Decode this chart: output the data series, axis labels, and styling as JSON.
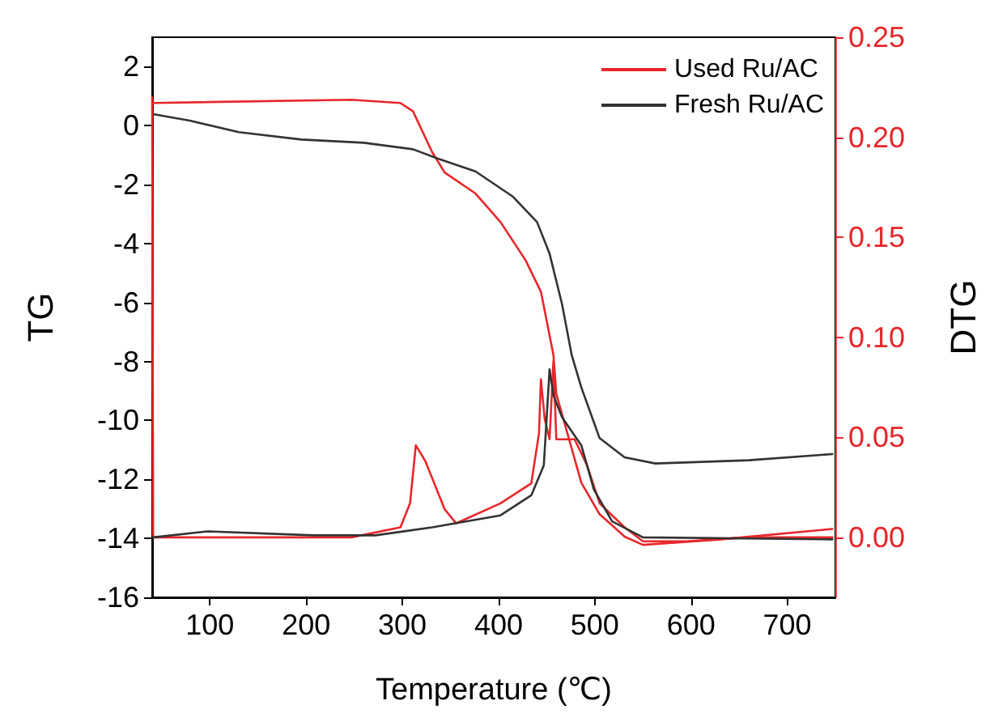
{
  "chart_data": {
    "type": "line",
    "xlabel": "Temperature (℃)",
    "ylabel": "TG",
    "y2label": "DTG",
    "xlim": [
      40,
      750
    ],
    "xticks": [
      100,
      200,
      300,
      400,
      500,
      600,
      700
    ],
    "ylim": [
      -16,
      3
    ],
    "yticks": [
      -16,
      -14,
      -12,
      -10,
      -8,
      -6,
      -4,
      -2,
      0,
      2
    ],
    "y2lim": [
      -0.03,
      0.25
    ],
    "y2ticks": [
      {
        "value": 0,
        "label": "0.00"
      },
      0.05,
      {
        "value": 0.1,
        "label": "0.10"
      },
      0.15,
      {
        "value": 0.2,
        "label": "0.20"
      },
      0.25
    ],
    "legend": "top right",
    "grid": false,
    "marker": "none",
    "line_style": "solid",
    "series": [
      {
        "name": "Used Ru/AC",
        "color": "#e8262a",
        "x": [
          41,
          247,
          298,
          311,
          331,
          344,
          376,
          402,
          428,
          444,
          457,
          460,
          486,
          505,
          531,
          550,
          628,
          747
        ],
        "values": [
          0.77,
          0.88,
          0.77,
          0.49,
          -0.9,
          -1.59,
          -2.3,
          -3.27,
          -4.56,
          -5.63,
          -7.78,
          -9.1,
          -12.11,
          -13.18,
          -13.94,
          -14.22,
          -14.04,
          -13.68
        ]
      },
      {
        "name": "Fresh Ru/AC",
        "color": "#333333",
        "x": [
          41,
          79,
          130,
          195,
          260,
          311,
          337,
          376,
          415,
          440,
          453,
          466,
          476,
          486,
          505,
          531,
          563,
          660,
          747
        ],
        "values": [
          0.39,
          0.17,
          -0.22,
          -0.47,
          -0.58,
          -0.8,
          -1.12,
          -1.55,
          -2.41,
          -3.27,
          -4.34,
          -6.06,
          -7.78,
          -8.88,
          -10.6,
          -11.25,
          -11.46,
          -11.35,
          -11.14
        ]
      },
      {
        "color": "#e8262a",
        "axis": "y2",
        "x": [
          40,
          41,
          142,
          247,
          298,
          308,
          314,
          324,
          344,
          356,
          402,
          434,
          442,
          444,
          448,
          453,
          457,
          460,
          479,
          492,
          505,
          531,
          550,
          595,
          660,
          747
        ],
        "values": [
          0.22,
          0.0,
          0.0,
          0.0,
          0.005,
          0.017,
          0.046,
          0.038,
          0.014,
          0.007,
          0.017,
          0.027,
          0.052,
          0.079,
          0.059,
          0.049,
          0.088,
          0.049,
          0.049,
          0.036,
          0.017,
          0.005,
          -0.002,
          -0.002,
          0.0,
          0.0
        ]
      },
      {
        "color": "#333333",
        "axis": "y2",
        "x": [
          41,
          98,
          208,
          272,
          331,
          402,
          434,
          447,
          453,
          457,
          466,
          486,
          499,
          518,
          550,
          747
        ],
        "values": [
          0.0,
          0.003,
          0.001,
          0.001,
          0.005,
          0.011,
          0.021,
          0.036,
          0.084,
          0.071,
          0.06,
          0.046,
          0.024,
          0.008,
          0.0,
          -0.001
        ]
      }
    ]
  }
}
